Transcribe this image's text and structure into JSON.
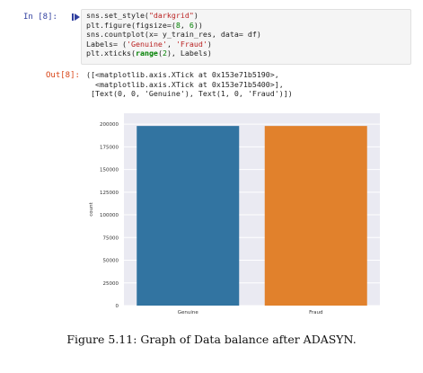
{
  "notebook": {
    "in_prompt": "In [8]:",
    "out_prompt": "Out[8]:",
    "code_lines": [
      "sns.set_style(\"darkgrid\")",
      "plt.figure(figsize=(8, 6))",
      "sns.countplot(x= y_train_res, data= df)",
      "Labels= ('Genuine', 'Fraud')",
      "plt.xticks(range(2), Labels)"
    ],
    "output_lines": [
      "([<matplotlib.axis.XTick at 0x153e71b5190>,",
      "  <matplotlib.axis.XTick at 0x153e71b5400>],",
      " [Text(0, 0, 'Genuine'), Text(1, 0, 'Fraud')])"
    ]
  },
  "chart_data": {
    "type": "bar",
    "categories": [
      "Genuine",
      "Fraud"
    ],
    "values": [
      198000,
      198000
    ],
    "colors": [
      "#3274a1",
      "#e1812c"
    ],
    "title": "",
    "xlabel": "",
    "ylabel": "count",
    "ylim": [
      0,
      212000
    ],
    "yticks": [
      0,
      25000,
      50000,
      75000,
      100000,
      125000,
      150000,
      175000,
      200000
    ],
    "grid": true,
    "style": "darkgrid",
    "background": "#eaeaf2"
  },
  "caption": "Figure 5.11: Graph of Data balance after ADASYN."
}
